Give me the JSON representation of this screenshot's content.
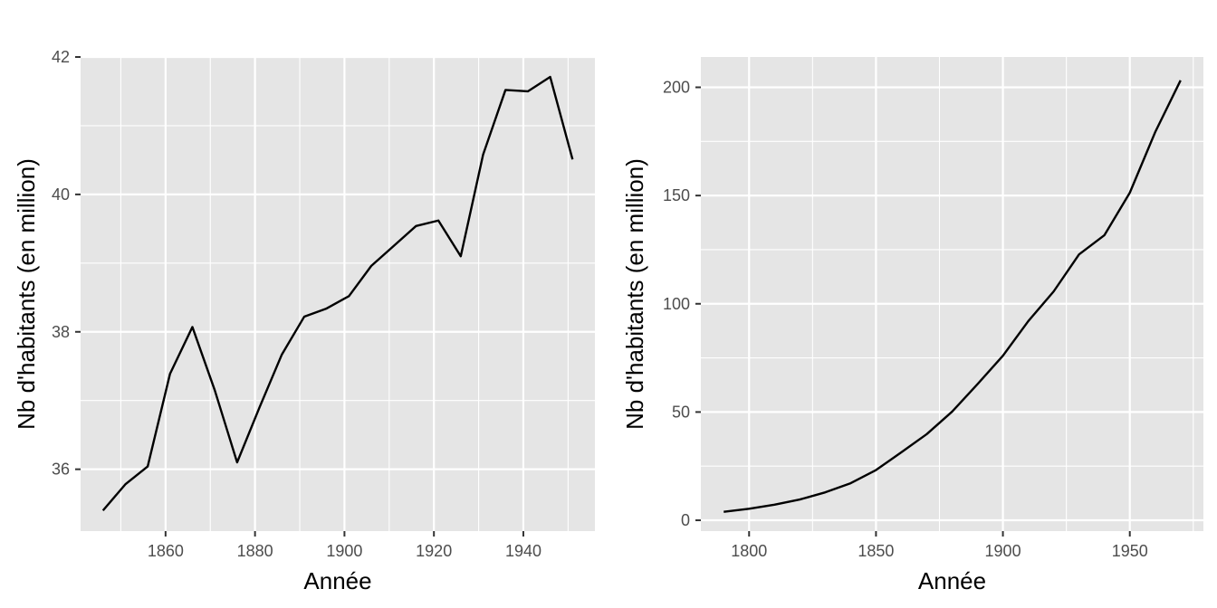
{
  "chart_data": [
    {
      "type": "line",
      "title": "",
      "xlabel": "Année",
      "ylabel": "Nb d'habitants (en million)",
      "xlim": [
        1841,
        1956
      ],
      "ylim": [
        35.1,
        42.0
      ],
      "xticks": [
        1860,
        1880,
        1900,
        1920,
        1940
      ],
      "yticks": [
        36,
        38,
        40,
        42
      ],
      "grid": true,
      "series": [
        {
          "x": [
            1846,
            1851,
            1856,
            1861,
            1866,
            1871,
            1876,
            1881,
            1886,
            1891,
            1896,
            1901,
            1906,
            1911,
            1916,
            1921,
            1926,
            1931,
            1936,
            1941,
            1946,
            1951
          ],
          "values": [
            35.4,
            35.78,
            36.04,
            37.39,
            38.07,
            37.15,
            36.1,
            36.9,
            37.67,
            38.22,
            38.34,
            38.52,
            38.96,
            39.25,
            39.54,
            39.62,
            39.1,
            40.58,
            41.52,
            41.5,
            41.71,
            40.51
          ]
        }
      ]
    },
    {
      "type": "line",
      "title": "",
      "xlabel": "Année",
      "ylabel": "Nb d'habitants (en million)",
      "xlim": [
        1781,
        1979
      ],
      "ylim": [
        -5,
        214
      ],
      "xticks": [
        1800,
        1850,
        1900,
        1950
      ],
      "yticks": [
        0,
        50,
        100,
        150,
        200
      ],
      "grid": true,
      "series": [
        {
          "x": [
            1790,
            1800,
            1810,
            1820,
            1830,
            1840,
            1850,
            1860,
            1870,
            1880,
            1890,
            1900,
            1910,
            1920,
            1930,
            1940,
            1950,
            1960,
            1970
          ],
          "values": [
            3.9,
            5.3,
            7.2,
            9.6,
            12.9,
            17.1,
            23.2,
            31.4,
            39.8,
            50.2,
            62.9,
            76.0,
            92.0,
            105.7,
            122.8,
            131.7,
            151.3,
            179.3,
            203.2
          ]
        }
      ]
    }
  ]
}
